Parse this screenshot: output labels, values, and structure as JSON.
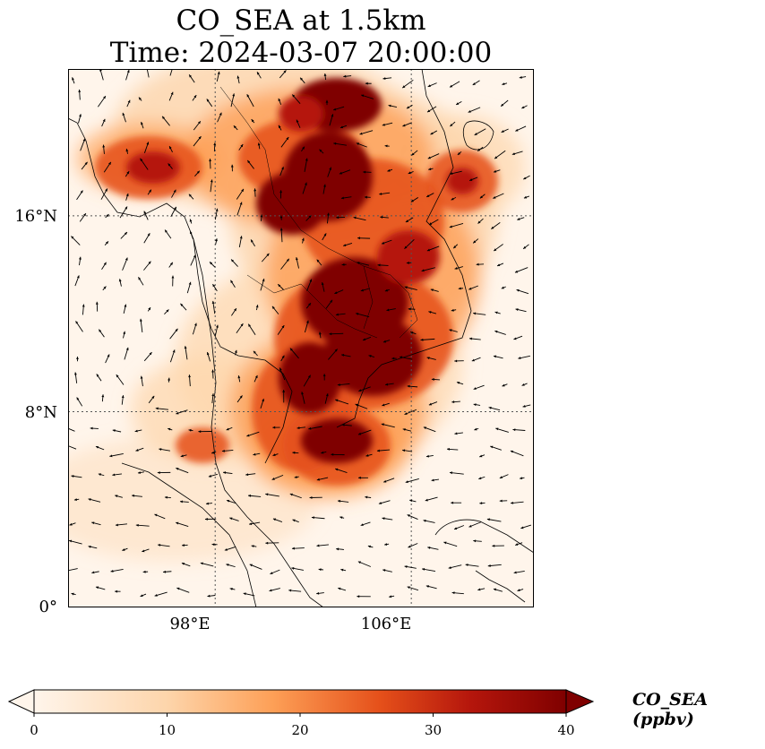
{
  "title_line1": "CO_SEA at 1.5km",
  "title_line2": "Time: 2024-03-07 20:00:00",
  "map": {
    "lon_range": [
      92,
      111
    ],
    "lat_range": [
      0,
      22
    ],
    "lat_ticks": [
      {
        "value": 0,
        "label": "0°"
      },
      {
        "value": 8,
        "label": "8°N"
      },
      {
        "value": 16,
        "label": "16°N"
      }
    ],
    "lon_ticks": [
      {
        "value": 98,
        "label": "98°E"
      },
      {
        "value": 106,
        "label": "106°E"
      }
    ],
    "gridlines": true,
    "field_colors": [
      "#fff5eb",
      "#fdd5ab",
      "#fd9f56",
      "#e5501a",
      "#b5160c",
      "#7f0000"
    ]
  },
  "colorbar": {
    "label": "CO_SEA (ppbv)",
    "min": 0,
    "max": 40,
    "ticks": [
      {
        "value": 0,
        "label": "0"
      },
      {
        "value": 10,
        "label": "10"
      },
      {
        "value": 20,
        "label": "20"
      },
      {
        "value": 30,
        "label": "30"
      },
      {
        "value": 40,
        "label": "40"
      }
    ],
    "extend": "both"
  }
}
